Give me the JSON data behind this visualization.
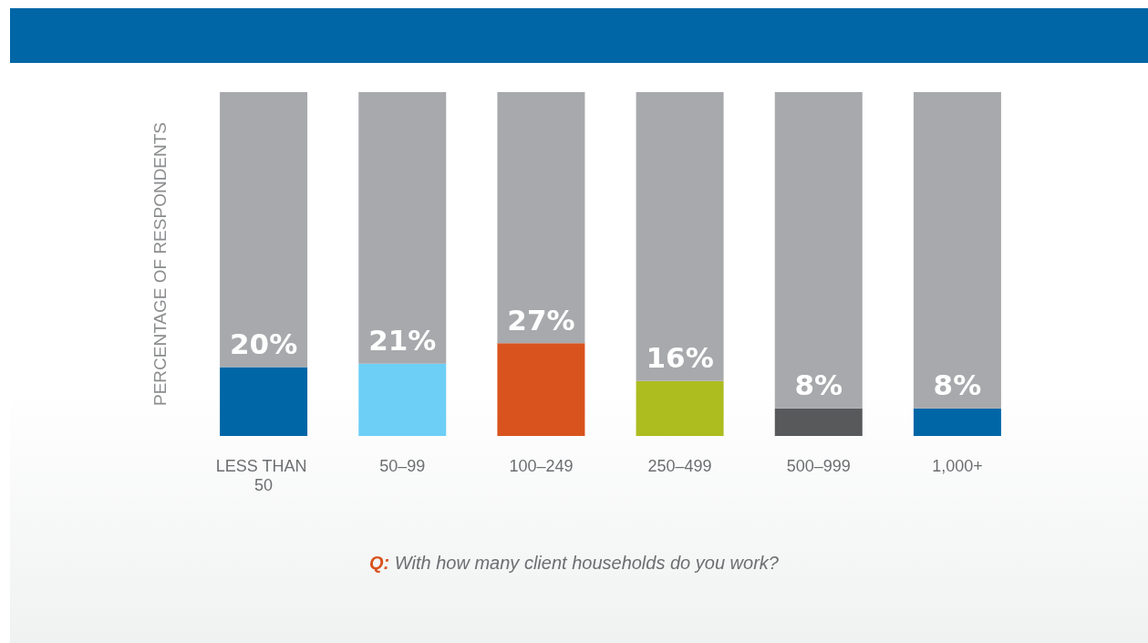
{
  "chart_data": {
    "type": "bar",
    "stacked": true,
    "ylabel": "PERCENTAGE OF RESPONDENTS",
    "categories": [
      "LESS THAN 50",
      "50–99",
      "100–249",
      "250–499",
      "500–999",
      "1,000+"
    ],
    "series": [
      {
        "colors": [
          "#0066a6",
          "#6dcff6",
          "#d9531e",
          "#adbc1e",
          "#58595b",
          "#0066a6"
        ],
        "values": [
          20,
          21,
          27,
          16,
          8,
          8
        ],
        "value_labels": [
          "20%",
          "21%",
          "27%",
          "16%",
          "8%",
          "8%"
        ]
      },
      {
        "color": "#a7a9ac",
        "values": [
          80,
          79,
          73,
          84,
          92,
          92
        ]
      }
    ],
    "ylim": [
      0,
      100
    ],
    "tick_labels": "x",
    "grid": false,
    "annotations": [
      "Q: With how many client households do you work?"
    ]
  }
}
